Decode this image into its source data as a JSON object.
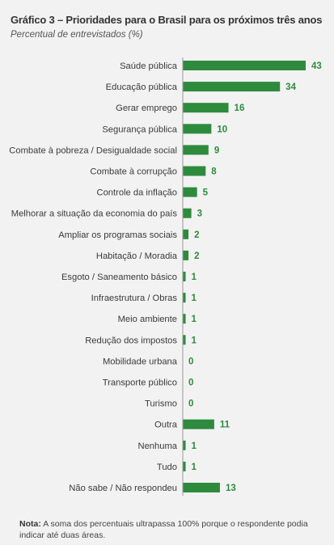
{
  "header": {
    "title": "Gráfico 3 – Prioridades para o Brasil para os próximos três anos",
    "subtitle": "Percentual de entrevistados (%)"
  },
  "footer": {
    "note_label": "Nota:",
    "note_text": "A soma dos percentuais ultrapassa 100% porque o respondente podia indicar até duas áreas."
  },
  "colors": {
    "bar": "#2e8b3e",
    "value_label": "#2e8b3e",
    "category_label": "#3a3a3a",
    "axis": "#9a9a9a",
    "background": "#f2f2f2"
  },
  "chart_data": {
    "type": "bar",
    "orientation": "horizontal",
    "title": "Gráfico 3 – Prioridades para o Brasil para os próximos três anos",
    "ylabel": "",
    "xlabel": "",
    "xlim": [
      0,
      43
    ],
    "grid": false,
    "categories": [
      "Saúde pública",
      "Educação pública",
      "Gerar emprego",
      "Segurança pública",
      "Combate à pobreza / Desigualdade social",
      "Combate à corrupção",
      "Controle da inflação",
      "Melhorar a situação da economia do país",
      "Ampliar os programas sociais",
      "Habitação / Moradia",
      "Esgoto / Saneamento básico",
      "Infraestrutura / Obras",
      "Meio ambiente",
      "Redução dos impostos",
      "Mobilidade urbana",
      "Transporte público",
      "Turismo",
      "Outra",
      "Nenhuma",
      "Tudo",
      "Não sabe / Não respondeu"
    ],
    "values": [
      43,
      34,
      16,
      10,
      9,
      8,
      5,
      3,
      2,
      2,
      1,
      1,
      1,
      1,
      0,
      0,
      0,
      11,
      1,
      1,
      13
    ]
  }
}
